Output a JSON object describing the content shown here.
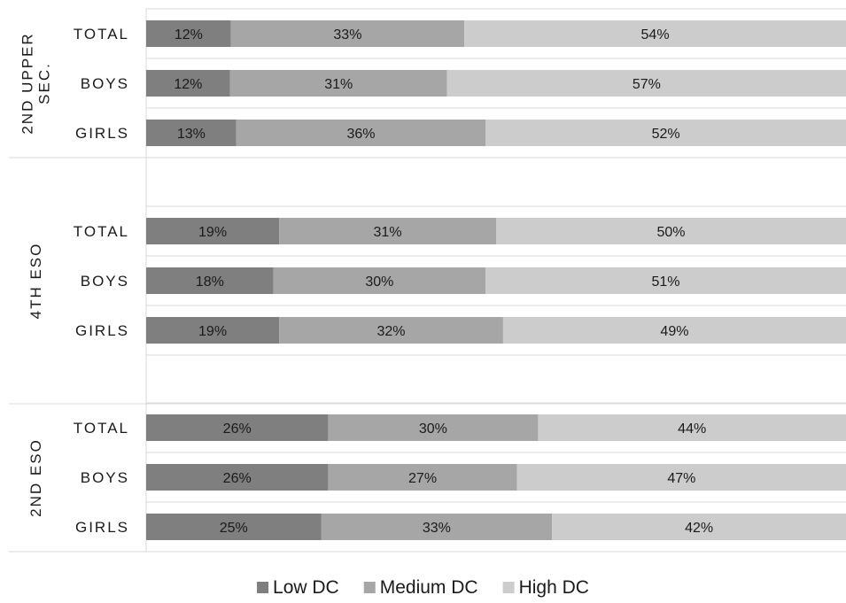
{
  "chart_data": {
    "type": "bar",
    "orientation": "horizontal",
    "stacked": "percent",
    "groups": [
      {
        "label": "2ND UPPER SEC.",
        "label_lines": [
          "2ND UPPER",
          "SEC."
        ],
        "categories": [
          "TOTAL",
          "BOYS",
          "GIRLS"
        ]
      },
      {
        "label": "4TH ESO",
        "label_lines": [
          "4TH ESO"
        ],
        "categories": [
          "TOTAL",
          "BOYS",
          "GIRLS"
        ]
      },
      {
        "label": "2ND ESO",
        "label_lines": [
          "2ND ESO"
        ],
        "categories": [
          "TOTAL",
          "BOYS",
          "GIRLS"
        ]
      }
    ],
    "series": [
      {
        "name": "Low DC",
        "color": "#7f7f7f",
        "values": [
          [
            12,
            12,
            13
          ],
          [
            19,
            18,
            19
          ],
          [
            26,
            26,
            25
          ]
        ]
      },
      {
        "name": "Medium DC",
        "color": "#a6a6a6",
        "values": [
          [
            33,
            31,
            36
          ],
          [
            31,
            30,
            32
          ],
          [
            30,
            27,
            33
          ]
        ]
      },
      {
        "name": "High DC",
        "color": "#cccccc",
        "values": [
          [
            54,
            57,
            52
          ],
          [
            50,
            51,
            49
          ],
          [
            44,
            47,
            42
          ]
        ]
      }
    ],
    "value_suffix": "%",
    "legend_position": "bottom",
    "grid": true
  }
}
